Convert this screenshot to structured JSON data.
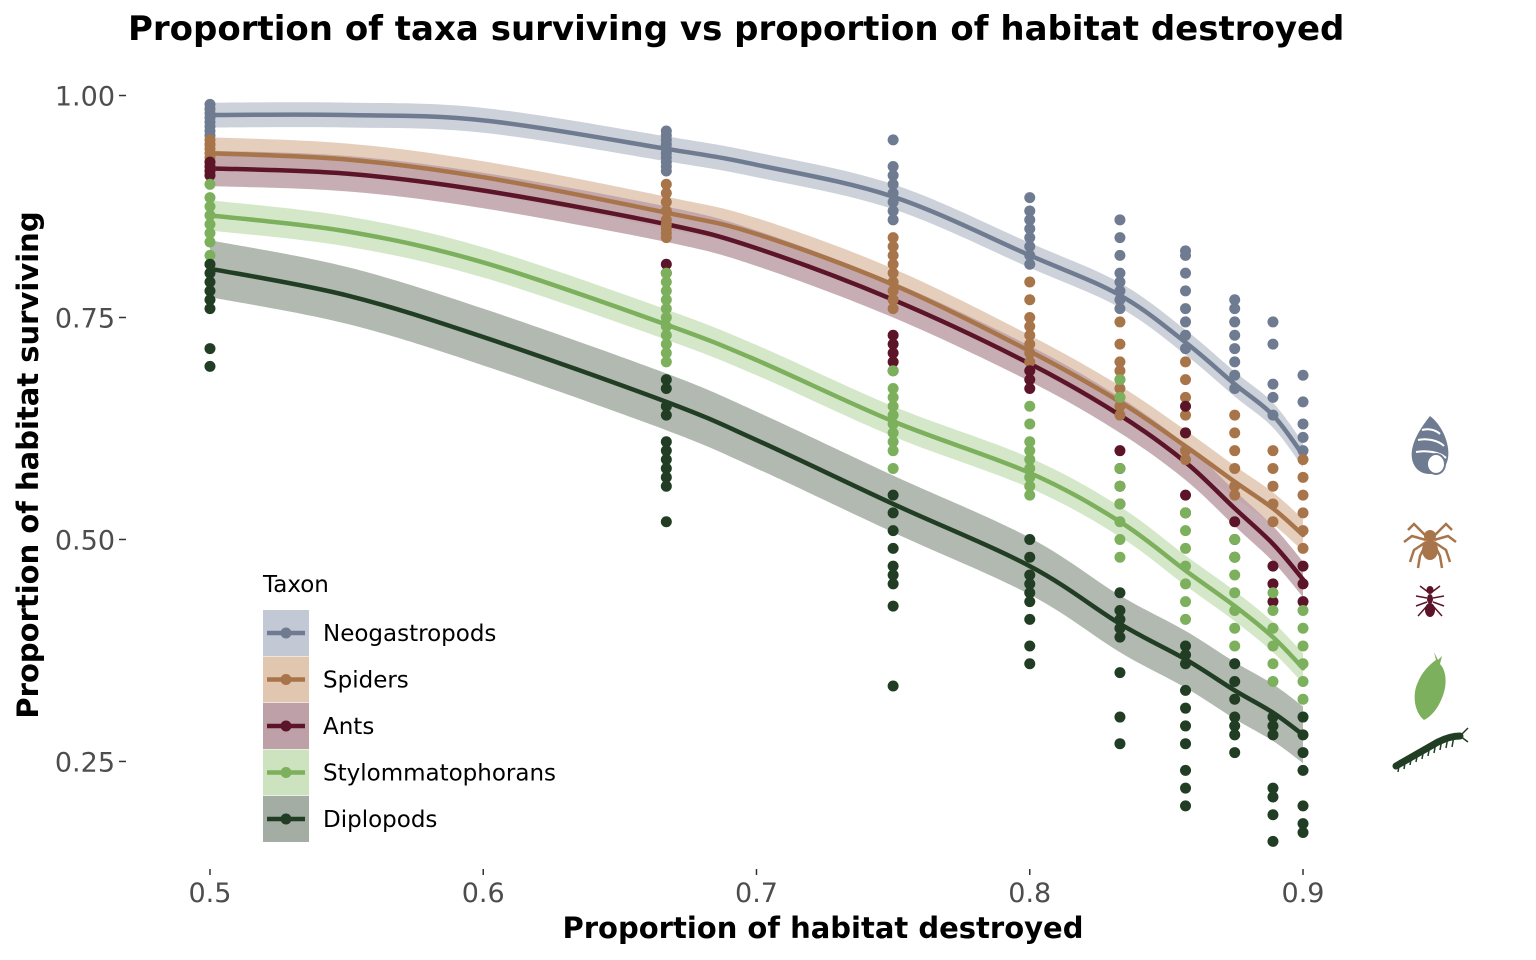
{
  "chart_data": {
    "type": "scatter",
    "title": "Proportion of taxa surviving vs proportion of habitat destroyed",
    "xlabel": "Proportion of habitat destroyed",
    "ylabel": "Proportion of habitat surviving",
    "xlim": [
      0.47,
      0.93
    ],
    "ylim": [
      0.13,
      1.04
    ],
    "x_ticks": [
      0.5,
      0.6,
      0.7,
      0.8,
      0.9
    ],
    "x_tick_labels": [
      "0.5",
      "0.6",
      "0.7",
      "0.8",
      "0.9"
    ],
    "y_ticks": [
      0.25,
      0.5,
      0.75,
      1.0
    ],
    "y_tick_labels": [
      "0.25",
      "0.50",
      "0.75",
      "1.00"
    ],
    "grid": false,
    "legend": {
      "title": "Taxon",
      "position": "bottom-left"
    },
    "x": [
      0.5,
      0.667,
      0.75,
      0.8,
      0.833,
      0.857,
      0.875,
      0.889,
      0.9
    ],
    "series": [
      {
        "name": "Neogastropods",
        "color": "#6e7b91",
        "band_color": "#c3c9d4",
        "icon": "snail-shell-icon",
        "fit": [
          [
            0.5,
            0.978
          ],
          [
            0.55,
            0.978
          ],
          [
            0.6,
            0.972
          ],
          [
            0.667,
            0.94
          ],
          [
            0.7,
            0.922
          ],
          [
            0.75,
            0.886
          ],
          [
            0.8,
            0.82
          ],
          [
            0.833,
            0.775
          ],
          [
            0.857,
            0.722
          ],
          [
            0.875,
            0.675
          ],
          [
            0.889,
            0.64
          ],
          [
            0.9,
            0.595
          ]
        ],
        "band_halfwidth": 0.014,
        "points": [
          [
            0.5,
            [
              0.99,
              0.985,
              0.98,
              0.975,
              0.97,
              0.965,
              0.96,
              0.955,
              0.945
            ]
          ],
          [
            0.667,
            [
              0.96,
              0.955,
              0.95,
              0.945,
              0.94,
              0.935,
              0.93,
              0.925,
              0.92,
              0.915
            ]
          ],
          [
            0.75,
            [
              0.95,
              0.92,
              0.91,
              0.9,
              0.89,
              0.88,
              0.87,
              0.86
            ]
          ],
          [
            0.8,
            [
              0.885,
              0.87,
              0.86,
              0.85,
              0.84,
              0.83,
              0.82,
              0.81
            ]
          ],
          [
            0.833,
            [
              0.86,
              0.84,
              0.82,
              0.8,
              0.79,
              0.78,
              0.77,
              0.76
            ]
          ],
          [
            0.857,
            [
              0.825,
              0.82,
              0.8,
              0.78,
              0.76,
              0.745,
              0.73,
              0.715
            ]
          ],
          [
            0.875,
            [
              0.77,
              0.76,
              0.745,
              0.73,
              0.715,
              0.7,
              0.685,
              0.67
            ]
          ],
          [
            0.889,
            [
              0.745,
              0.72,
              0.675,
              0.66,
              0.64
            ]
          ],
          [
            0.9,
            [
              0.685,
              0.655,
              0.63,
              0.615,
              0.6
            ]
          ]
        ]
      },
      {
        "name": "Spiders",
        "color": "#a8744a",
        "band_color": "#e1c7b0",
        "icon": "spider-icon",
        "fit": [
          [
            0.5,
            0.935
          ],
          [
            0.55,
            0.928
          ],
          [
            0.6,
            0.908
          ],
          [
            0.667,
            0.868
          ],
          [
            0.7,
            0.844
          ],
          [
            0.75,
            0.787
          ],
          [
            0.8,
            0.712
          ],
          [
            0.833,
            0.655
          ],
          [
            0.857,
            0.605
          ],
          [
            0.875,
            0.565
          ],
          [
            0.889,
            0.535
          ],
          [
            0.9,
            0.505
          ]
        ],
        "band_halfwidth": 0.018,
        "points": [
          [
            0.5,
            [
              0.95,
              0.945,
              0.94,
              0.935,
              0.93,
              0.925,
              0.92,
              0.915,
              0.91
            ]
          ],
          [
            0.667,
            [
              0.9,
              0.89,
              0.88,
              0.87,
              0.86,
              0.855,
              0.85,
              0.845,
              0.84
            ]
          ],
          [
            0.75,
            [
              0.84,
              0.83,
              0.82,
              0.81,
              0.8,
              0.79,
              0.78,
              0.77,
              0.76
            ]
          ],
          [
            0.8,
            [
              0.79,
              0.77,
              0.75,
              0.74,
              0.73,
              0.72,
              0.71,
              0.7
            ]
          ],
          [
            0.833,
            [
              0.745,
              0.72,
              0.7,
              0.69,
              0.68,
              0.67,
              0.66,
              0.65,
              0.64
            ]
          ],
          [
            0.857,
            [
              0.7,
              0.68,
              0.66,
              0.64,
              0.62,
              0.6,
              0.59
            ]
          ],
          [
            0.875,
            [
              0.64,
              0.62,
              0.6,
              0.58,
              0.56,
              0.55
            ]
          ],
          [
            0.889,
            [
              0.6,
              0.58,
              0.56,
              0.54,
              0.52
            ]
          ],
          [
            0.9,
            [
              0.59,
              0.57,
              0.55,
              0.53,
              0.51,
              0.49
            ]
          ]
        ]
      },
      {
        "name": "Ants",
        "color": "#5c1428",
        "band_color": "#bda0a8",
        "icon": "ant-icon",
        "fit": [
          [
            0.5,
            0.918
          ],
          [
            0.55,
            0.912
          ],
          [
            0.6,
            0.893
          ],
          [
            0.667,
            0.855
          ],
          [
            0.7,
            0.828
          ],
          [
            0.75,
            0.77
          ],
          [
            0.8,
            0.698
          ],
          [
            0.833,
            0.64
          ],
          [
            0.857,
            0.587
          ],
          [
            0.875,
            0.535
          ],
          [
            0.889,
            0.495
          ],
          [
            0.9,
            0.455
          ]
        ],
        "band_halfwidth": 0.02,
        "points": [
          [
            0.5,
            [
              0.925,
              0.92,
              0.915,
              0.91
            ]
          ],
          [
            0.667,
            [
              0.81,
              0.8
            ]
          ],
          [
            0.75,
            [
              0.73,
              0.72,
              0.71,
              0.7,
              0.69
            ]
          ],
          [
            0.8,
            [
              0.69,
              0.68,
              0.67
            ]
          ],
          [
            0.833,
            [
              0.6,
              0.58,
              0.56,
              0.54
            ]
          ],
          [
            0.857,
            [
              0.65,
              0.62,
              0.55,
              0.53
            ]
          ],
          [
            0.875,
            [
              0.52,
              0.5,
              0.48
            ]
          ],
          [
            0.889,
            [
              0.47,
              0.45,
              0.43
            ]
          ],
          [
            0.9,
            [
              0.47,
              0.45,
              0.43
            ]
          ]
        ]
      },
      {
        "name": "Stylommatophorans",
        "color": "#7cb05c",
        "band_color": "#cde3bf",
        "icon": "slug-icon",
        "fit": [
          [
            0.5,
            0.865
          ],
          [
            0.55,
            0.847
          ],
          [
            0.6,
            0.812
          ],
          [
            0.667,
            0.742
          ],
          [
            0.7,
            0.702
          ],
          [
            0.75,
            0.633
          ],
          [
            0.8,
            0.575
          ],
          [
            0.833,
            0.52
          ],
          [
            0.857,
            0.465
          ],
          [
            0.875,
            0.425
          ],
          [
            0.889,
            0.39
          ],
          [
            0.9,
            0.355
          ]
        ],
        "band_halfwidth": 0.017,
        "points": [
          [
            0.5,
            [
              0.9,
              0.885,
              0.875,
              0.865,
              0.855,
              0.845,
              0.835,
              0.82,
              0.81
            ]
          ],
          [
            0.667,
            [
              0.8,
              0.79,
              0.78,
              0.77,
              0.76,
              0.75,
              0.74,
              0.73,
              0.72,
              0.71,
              0.7
            ]
          ],
          [
            0.75,
            [
              0.69,
              0.67,
              0.66,
              0.65,
              0.64,
              0.63,
              0.62,
              0.61,
              0.6,
              0.58
            ]
          ],
          [
            0.8,
            [
              0.65,
              0.63,
              0.61,
              0.6,
              0.59,
              0.58,
              0.57,
              0.56,
              0.55
            ]
          ],
          [
            0.833,
            [
              0.68,
              0.66,
              0.58,
              0.56,
              0.54,
              0.52,
              0.5,
              0.48
            ]
          ],
          [
            0.857,
            [
              0.53,
              0.51,
              0.49,
              0.47,
              0.45,
              0.43,
              0.41
            ]
          ],
          [
            0.875,
            [
              0.5,
              0.48,
              0.46,
              0.44,
              0.42,
              0.4,
              0.38,
              0.36
            ]
          ],
          [
            0.889,
            [
              0.44,
              0.42,
              0.4,
              0.38,
              0.36,
              0.34
            ]
          ],
          [
            0.9,
            [
              0.42,
              0.4,
              0.38,
              0.36,
              0.34,
              0.32
            ]
          ]
        ]
      },
      {
        "name": "Diplopods",
        "color": "#213d24",
        "band_color": "#a3ada3",
        "icon": "millipede-icon",
        "fit": [
          [
            0.5,
            0.805
          ],
          [
            0.55,
            0.775
          ],
          [
            0.6,
            0.728
          ],
          [
            0.667,
            0.655
          ],
          [
            0.7,
            0.612
          ],
          [
            0.75,
            0.54
          ],
          [
            0.8,
            0.47
          ],
          [
            0.833,
            0.405
          ],
          [
            0.857,
            0.365
          ],
          [
            0.875,
            0.33
          ],
          [
            0.889,
            0.305
          ],
          [
            0.9,
            0.28
          ]
        ],
        "band_halfwidth": 0.032,
        "points": [
          [
            0.5,
            [
              0.81,
              0.8,
              0.79,
              0.78,
              0.77,
              0.76,
              0.715,
              0.695
            ]
          ],
          [
            0.667,
            [
              0.68,
              0.67,
              0.65,
              0.64,
              0.61,
              0.6,
              0.59,
              0.58,
              0.57,
              0.56,
              0.52
            ]
          ],
          [
            0.75,
            [
              0.55,
              0.53,
              0.51,
              0.49,
              0.47,
              0.46,
              0.45,
              0.425,
              0.335
            ]
          ],
          [
            0.8,
            [
              0.5,
              0.48,
              0.46,
              0.45,
              0.44,
              0.43,
              0.41,
              0.38,
              0.36
            ]
          ],
          [
            0.833,
            [
              0.44,
              0.42,
              0.41,
              0.4,
              0.39,
              0.35,
              0.3,
              0.27
            ]
          ],
          [
            0.857,
            [
              0.38,
              0.37,
              0.36,
              0.33,
              0.31,
              0.29,
              0.27,
              0.24,
              0.22,
              0.2
            ]
          ],
          [
            0.875,
            [
              0.36,
              0.34,
              0.32,
              0.3,
              0.29,
              0.28,
              0.26
            ]
          ],
          [
            0.889,
            [
              0.3,
              0.29,
              0.28,
              0.22,
              0.21,
              0.19,
              0.16
            ]
          ],
          [
            0.9,
            [
              0.3,
              0.28,
              0.26,
              0.24,
              0.2,
              0.18,
              0.17
            ]
          ]
        ]
      }
    ]
  }
}
